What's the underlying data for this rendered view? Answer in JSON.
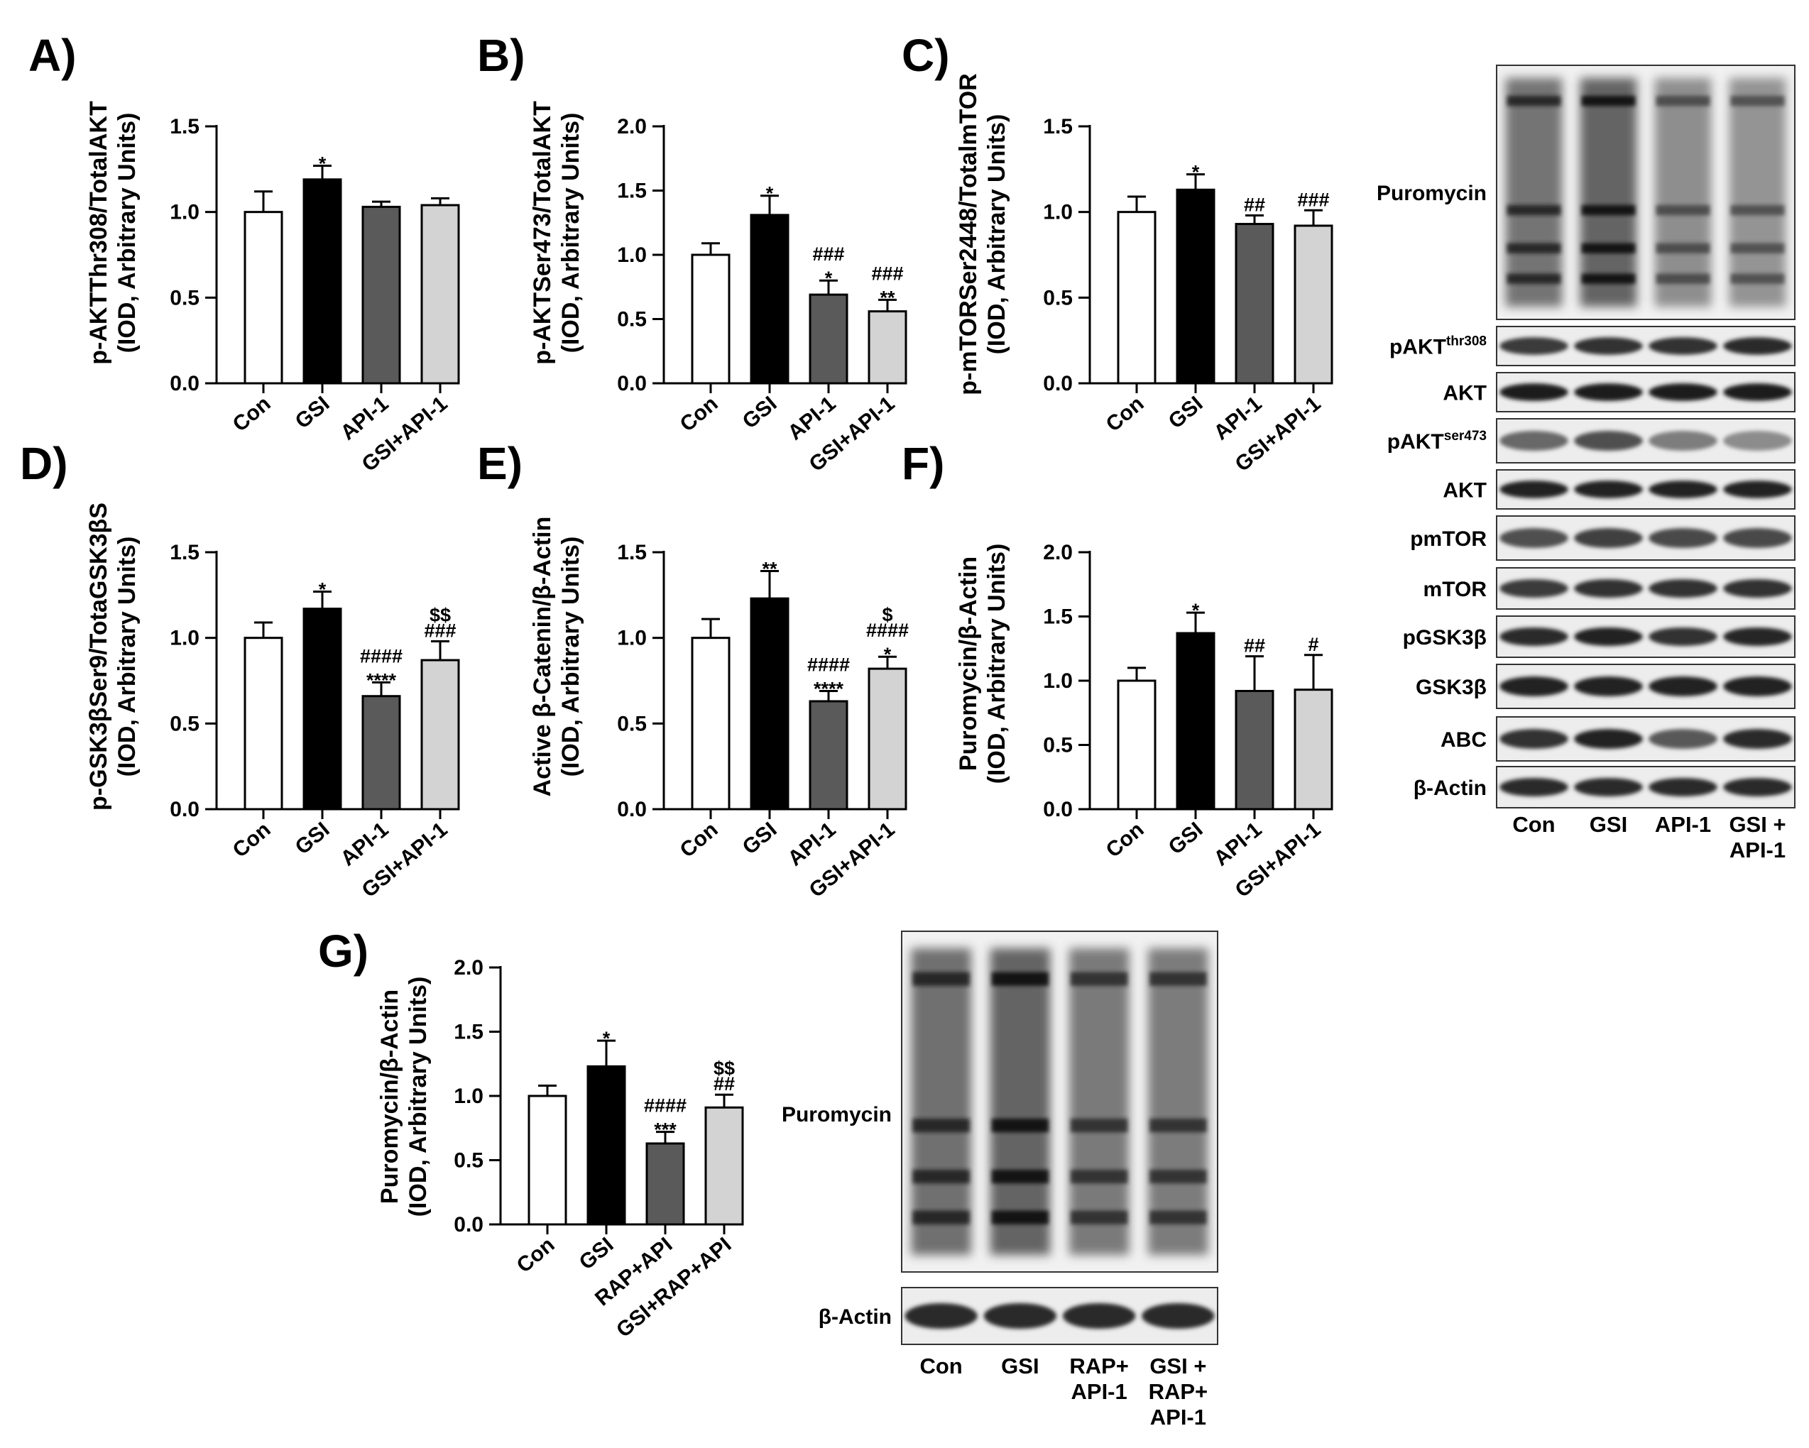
{
  "chart_data": [
    {
      "type": "bar",
      "panel": "A)",
      "ylabel_line1": "p-AKTThr308/TotalAKT",
      "ylabel_line2": "(IOD,  Arbitrary  Units)",
      "categories": [
        "Con",
        "GSI",
        "API-1",
        "GSI+API-1"
      ],
      "values": [
        1.0,
        1.19,
        1.03,
        1.04
      ],
      "errors": [
        0.12,
        0.08,
        0.03,
        0.04
      ],
      "annotations": [
        "",
        "*",
        "",
        ""
      ],
      "ylim": [
        0,
        1.5
      ],
      "yticks": [
        "0.0",
        "0.5",
        "1.0",
        "1.5"
      ]
    },
    {
      "type": "bar",
      "panel": "B)",
      "ylabel_line1": "p-AKTSer473/TotalAKT",
      "ylabel_line2": "(IOD,  Arbitrary  Units)",
      "categories": [
        "Con",
        "GSI",
        "API-1",
        "GSI+API-1"
      ],
      "values": [
        1.0,
        1.31,
        0.69,
        0.56
      ],
      "errors": [
        0.09,
        0.15,
        0.11,
        0.09
      ],
      "annotations": [
        "",
        "*",
        "###\n*",
        "###\n**"
      ],
      "ylim": [
        0,
        2.0
      ],
      "yticks": [
        "0.0",
        "0.5",
        "1.0",
        "1.5",
        "2.0"
      ]
    },
    {
      "type": "bar",
      "panel": "C)",
      "ylabel_line1": "p-mTORSer2448/TotalmTOR",
      "ylabel_line2": "(IOD,  Arbitrary  Units)",
      "categories": [
        "Con",
        "GSI",
        "API-1",
        "GSI+API-1"
      ],
      "values": [
        1.0,
        1.13,
        0.93,
        0.92
      ],
      "errors": [
        0.09,
        0.09,
        0.05,
        0.09
      ],
      "annotations": [
        "",
        "*",
        "##",
        "###"
      ],
      "ylim": [
        0,
        1.5
      ],
      "yticks": [
        "0.0",
        "0.5",
        "1.0",
        "1.5"
      ]
    },
    {
      "type": "bar",
      "panel": "D)",
      "ylabel_line1": "p-GSK3βSer9/TotaGSK3βS",
      "ylabel_line2": "(IOD,  Arbitrary  Units)",
      "categories": [
        "Con",
        "GSI",
        "API-1",
        "GSI+API-1"
      ],
      "values": [
        1.0,
        1.17,
        0.66,
        0.87
      ],
      "errors": [
        0.09,
        0.1,
        0.08,
        0.11
      ],
      "annotations": [
        "",
        "*",
        "####\n****",
        "$$\n###"
      ],
      "ylim": [
        0,
        1.5
      ],
      "yticks": [
        "0.0",
        "0.5",
        "1.0",
        "1.5"
      ]
    },
    {
      "type": "bar",
      "panel": "E)",
      "ylabel_line1": "Active β-Catenin/β-Actin",
      "ylabel_line2": "(IOD,  Arbitrary  Units)",
      "categories": [
        "Con",
        "GSI",
        "API-1",
        "GSI+API-1"
      ],
      "values": [
        1.0,
        1.23,
        0.63,
        0.82
      ],
      "errors": [
        0.11,
        0.16,
        0.06,
        0.07
      ],
      "annotations": [
        "",
        "**",
        "####\n****",
        "$\n####\n*"
      ],
      "ylim": [
        0,
        1.5
      ],
      "yticks": [
        "0.0",
        "0.5",
        "1.0",
        "1.5"
      ]
    },
    {
      "type": "bar",
      "panel": "F)",
      "ylabel_line1": "Puromycin/β-Actin",
      "ylabel_line2": "(IOD,  Arbitrary  Units)",
      "categories": [
        "Con",
        "GSI",
        "API-1",
        "GSI+API-1"
      ],
      "values": [
        1.0,
        1.37,
        0.92,
        0.93
      ],
      "errors": [
        0.1,
        0.16,
        0.27,
        0.27
      ],
      "annotations": [
        "",
        "*",
        "##",
        "#"
      ],
      "ylim": [
        0,
        2.0
      ],
      "yticks": [
        "0.0",
        "0.5",
        "1.0",
        "1.5",
        "2.0"
      ]
    },
    {
      "type": "bar",
      "panel": "G)",
      "ylabel_line1": "Puromycin/β-Actin",
      "ylabel_line2": "(IOD,  Arbitrary  Units)",
      "categories": [
        "Con",
        "GSI",
        "RAP+API",
        "GSI+RAP+API"
      ],
      "values": [
        1.0,
        1.23,
        0.63,
        0.91
      ],
      "errors": [
        0.08,
        0.2,
        0.09,
        0.1
      ],
      "annotations": [
        "",
        "*",
        "####\n***",
        "$$\n##"
      ],
      "ylim": [
        0,
        2.0
      ],
      "yticks": [
        "0.0",
        "0.5",
        "1.0",
        "1.5",
        "2.0"
      ]
    }
  ],
  "bar_colors": [
    "#ffffff",
    "#000000",
    "#5a5a5a",
    "#d3d3d3"
  ],
  "blot_top": {
    "labels": [
      "Puromycin",
      "pAKT",
      "AKT",
      "pAKT",
      "AKT",
      "pmTOR",
      "mTOR",
      "pGSK3β",
      "GSK3β",
      "ABC",
      "β-Actin"
    ],
    "superscripts": [
      "",
      "thr308",
      "",
      "ser473",
      "",
      "",
      "",
      "",
      "",
      "",
      ""
    ],
    "lanes": [
      [
        "Con"
      ],
      [
        "GSI"
      ],
      [
        "API-1"
      ],
      [
        "GSI +",
        "API-1"
      ]
    ]
  },
  "blot_bottom": {
    "labels": [
      "Puromycin",
      "β-Actin"
    ],
    "lanes": [
      [
        "Con"
      ],
      [
        "GSI"
      ],
      [
        "RAP+",
        "API-1"
      ],
      [
        "GSI +",
        "RAP+",
        "API-1"
      ]
    ]
  }
}
